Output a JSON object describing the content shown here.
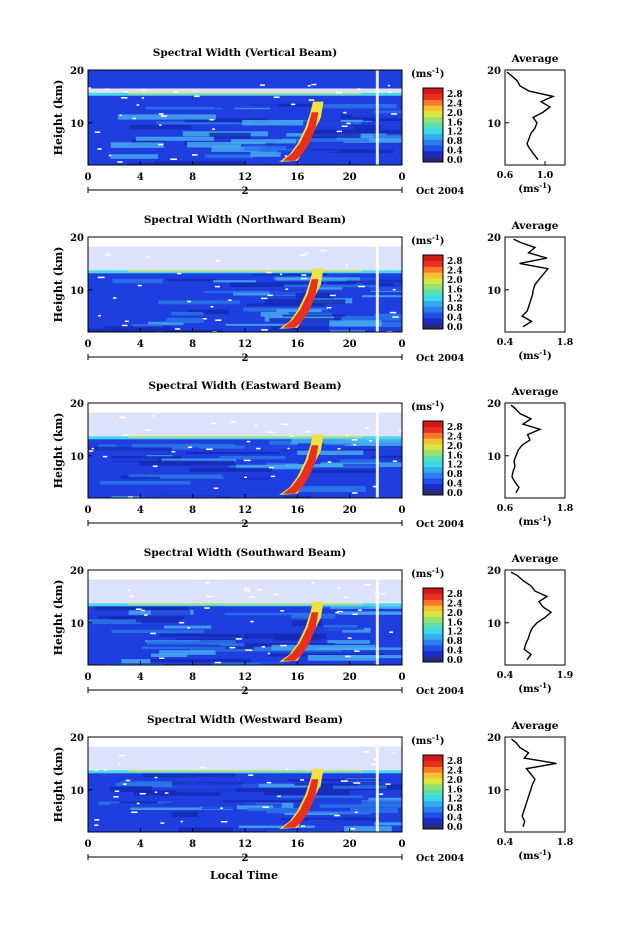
{
  "figure": {
    "xlabel": "Local Time",
    "colorbar": {
      "unit_base": "(ms",
      "unit_exp": "-1",
      "unit_close": ")",
      "ticks": [
        "2.8",
        "2.4",
        "2.0",
        "1.6",
        "1.2",
        "0.8",
        "0.4",
        "0.0"
      ],
      "colors": [
        "#2a2a7a",
        "#1c2ac8",
        "#2050e8",
        "#2c7ef0",
        "#32aef0",
        "#3cd8e8",
        "#5ae0b0",
        "#9ae070",
        "#d8e840",
        "#f8c030",
        "#f87828",
        "#e83020",
        "#d01818"
      ]
    },
    "colors": {
      "background": "#1e3ee0",
      "dark": "#1428b0",
      "mid": "#2c78e8",
      "light": "#48b0f0",
      "cyan": "#48d8e8",
      "green": "#9ae070",
      "yellow": "#f0e040",
      "red": "#e83020",
      "gap": "#ffffff"
    },
    "avg_xlabel": {
      "base": "(ms",
      "exp": "-1",
      "close": ")"
    }
  },
  "chart_data": [
    {
      "type": "heatmap",
      "title": "Spectral Width (Vertical Beam)",
      "ylabel": "Height (km)",
      "yticks": [
        "20",
        "10"
      ],
      "ylim": [
        2,
        20
      ],
      "xticks": [
        "0",
        "4",
        "8",
        "12",
        "16",
        "20",
        "0"
      ],
      "xlim": [
        0,
        24
      ],
      "date_marker": "2",
      "date_label": "Oct 2004",
      "average": {
        "title": "Average",
        "xticks": [
          "0.6",
          "1.0"
        ],
        "xlim": [
          0.6,
          1.2
        ],
        "yticks": [
          "20",
          "10"
        ],
        "profile": [
          [
            0.93,
            3
          ],
          [
            0.89,
            4
          ],
          [
            0.85,
            5
          ],
          [
            0.82,
            6
          ],
          [
            0.84,
            7
          ],
          [
            0.86,
            8
          ],
          [
            0.9,
            9
          ],
          [
            0.92,
            10
          ],
          [
            0.88,
            11
          ],
          [
            0.98,
            12
          ],
          [
            1.05,
            13
          ],
          [
            0.96,
            14
          ],
          [
            1.08,
            15
          ],
          [
            0.84,
            16
          ],
          [
            0.75,
            17
          ],
          [
            0.72,
            18
          ],
          [
            0.66,
            19
          ],
          [
            0.62,
            19.6
          ]
        ]
      }
    },
    {
      "type": "heatmap",
      "title": "Spectral Width (Northward Beam)",
      "ylabel": "Height (km)",
      "yticks": [
        "20",
        "10"
      ],
      "ylim": [
        2,
        20
      ],
      "xticks": [
        "0",
        "4",
        "8",
        "12",
        "16",
        "20",
        "0"
      ],
      "xlim": [
        0,
        24
      ],
      "date_marker": "2",
      "date_label": "Oct 2004",
      "average": {
        "title": "Average",
        "xticks": [
          "0.4",
          "1.8"
        ],
        "xlim": [
          0.4,
          1.8
        ],
        "yticks": [
          "20",
          "10"
        ],
        "profile": [
          [
            0.82,
            3
          ],
          [
            1.02,
            4
          ],
          [
            0.8,
            5
          ],
          [
            0.92,
            6
          ],
          [
            0.96,
            7
          ],
          [
            1.0,
            8
          ],
          [
            1.04,
            9
          ],
          [
            1.06,
            10
          ],
          [
            1.1,
            11
          ],
          [
            1.2,
            12
          ],
          [
            1.3,
            13
          ],
          [
            1.4,
            14
          ],
          [
            0.74,
            15
          ],
          [
            1.38,
            16
          ],
          [
            0.95,
            17
          ],
          [
            1.1,
            18
          ],
          [
            0.75,
            19
          ],
          [
            0.6,
            19.6
          ]
        ]
      }
    },
    {
      "type": "heatmap",
      "title": "Spectral Width (Eastward Beam)",
      "ylabel": "Height (km)",
      "yticks": [
        "20",
        "10"
      ],
      "ylim": [
        2,
        20
      ],
      "xticks": [
        "0",
        "4",
        "8",
        "12",
        "16",
        "20",
        "0"
      ],
      "xlim": [
        0,
        24
      ],
      "date_marker": "2",
      "date_label": "Oct 2004",
      "average": {
        "title": "Average",
        "xticks": [
          "0.6",
          "1.8"
        ],
        "xlim": [
          0.6,
          1.8
        ],
        "yticks": [
          "20",
          "10"
        ],
        "profile": [
          [
            0.82,
            3
          ],
          [
            0.88,
            4
          ],
          [
            0.8,
            5
          ],
          [
            0.74,
            6
          ],
          [
            0.76,
            7
          ],
          [
            0.8,
            8
          ],
          [
            0.78,
            9
          ],
          [
            0.82,
            10
          ],
          [
            0.86,
            11
          ],
          [
            0.94,
            12
          ],
          [
            1.1,
            13
          ],
          [
            1.05,
            14
          ],
          [
            1.3,
            15
          ],
          [
            0.96,
            16
          ],
          [
            1.12,
            17
          ],
          [
            0.9,
            18
          ],
          [
            0.8,
            19
          ],
          [
            0.72,
            19.6
          ]
        ]
      }
    },
    {
      "type": "heatmap",
      "title": "Spectral Width (Southward Beam)",
      "ylabel": "Height (km)",
      "yticks": [
        "20",
        "10"
      ],
      "ylim": [
        2,
        20
      ],
      "xticks": [
        "0",
        "4",
        "8",
        "12",
        "16",
        "20",
        "0"
      ],
      "xlim": [
        0,
        24
      ],
      "date_marker": "2",
      "date_label": "Oct 2004",
      "average": {
        "title": "Average",
        "xticks": [
          "0.4",
          "1.9"
        ],
        "xlim": [
          0.4,
          1.9
        ],
        "yticks": [
          "20",
          "10"
        ],
        "profile": [
          [
            0.95,
            3
          ],
          [
            1.05,
            4
          ],
          [
            0.88,
            5
          ],
          [
            0.92,
            6
          ],
          [
            0.98,
            7
          ],
          [
            1.02,
            8
          ],
          [
            1.08,
            9
          ],
          [
            1.2,
            10
          ],
          [
            1.4,
            11
          ],
          [
            1.55,
            12
          ],
          [
            1.35,
            13
          ],
          [
            1.25,
            14
          ],
          [
            1.45,
            15
          ],
          [
            1.15,
            16
          ],
          [
            1.05,
            17
          ],
          [
            0.85,
            18
          ],
          [
            0.7,
            19
          ],
          [
            0.55,
            19.6
          ]
        ]
      }
    },
    {
      "type": "heatmap",
      "title": "Spectral Width (Westward Beam)",
      "ylabel": "Height (km)",
      "yticks": [
        "20",
        "10"
      ],
      "ylim": [
        2,
        20
      ],
      "xticks": [
        "0",
        "4",
        "8",
        "12",
        "16",
        "20",
        "0"
      ],
      "xlim": [
        0,
        24
      ],
      "date_marker": "2",
      "date_label": "Oct 2004",
      "average": {
        "title": "Average",
        "xticks": [
          "0.4",
          "1.8"
        ],
        "xlim": [
          0.4,
          1.8
        ],
        "yticks": [
          "20",
          "10"
        ],
        "profile": [
          [
            0.82,
            3
          ],
          [
            0.86,
            4
          ],
          [
            0.8,
            5
          ],
          [
            0.84,
            6
          ],
          [
            0.88,
            7
          ],
          [
            0.92,
            8
          ],
          [
            0.96,
            9
          ],
          [
            1.0,
            10
          ],
          [
            1.04,
            11
          ],
          [
            1.1,
            12
          ],
          [
            1.0,
            13
          ],
          [
            0.9,
            14
          ],
          [
            1.6,
            15
          ],
          [
            0.85,
            16
          ],
          [
            0.95,
            17
          ],
          [
            0.75,
            18
          ],
          [
            0.65,
            19
          ],
          [
            0.55,
            19.6
          ]
        ]
      }
    }
  ]
}
